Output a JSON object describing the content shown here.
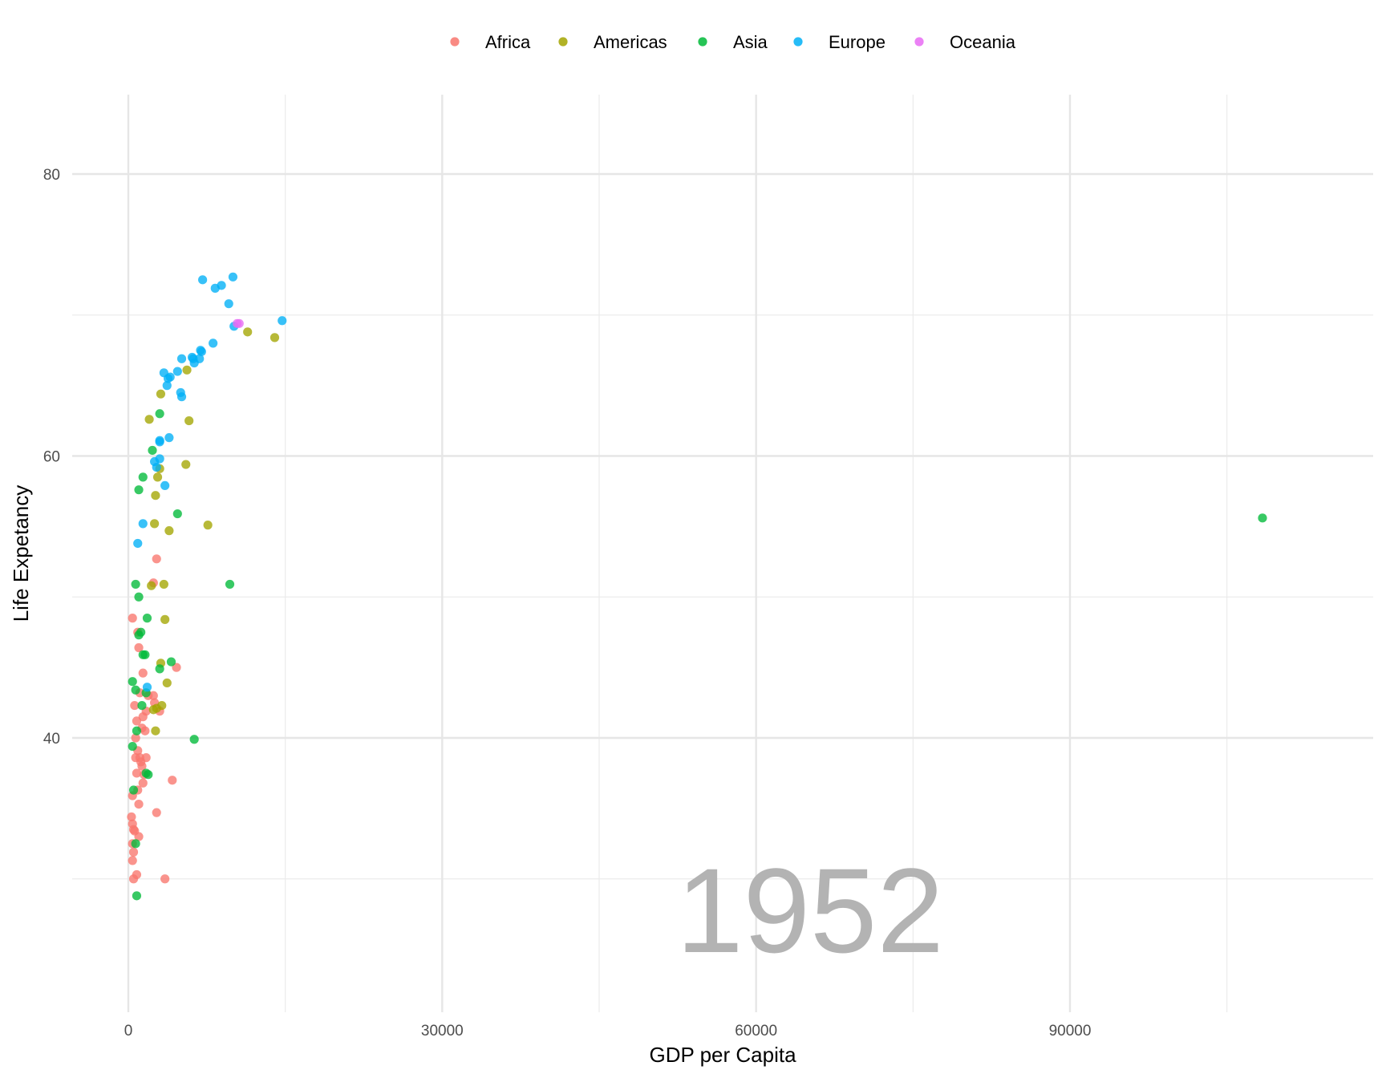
{
  "chart_data": {
    "type": "scatter",
    "xlabel": "GDP per Capita",
    "ylabel": "Life Expetancy",
    "annotation": "1952",
    "xlim": [
      -5000,
      119000
    ],
    "ylim": [
      25,
      84
    ],
    "xticks": [
      0,
      30000,
      60000,
      90000
    ],
    "xtick_labels": [
      "0",
      "30000",
      "60000",
      "90000"
    ],
    "yticks": [
      40,
      60,
      80
    ],
    "ytick_labels": [
      "40",
      "60",
      "80"
    ],
    "grid": true,
    "legend_position": "top",
    "series": [
      {
        "name": "Africa",
        "color": "#F8766D",
        "points": [
          [
            400,
            48.5
          ],
          [
            900,
            47.5
          ],
          [
            1000,
            46.4
          ],
          [
            1400,
            44.6
          ],
          [
            4600,
            45.0
          ],
          [
            2400,
            51.0
          ],
          [
            2700,
            52.7
          ],
          [
            600,
            42.3
          ],
          [
            1100,
            43.2
          ],
          [
            1400,
            41.5
          ],
          [
            1700,
            41.9
          ],
          [
            2400,
            43.0
          ],
          [
            2500,
            42.5
          ],
          [
            3000,
            41.9
          ],
          [
            700,
            40.0
          ],
          [
            1300,
            40.7
          ],
          [
            1600,
            40.5
          ],
          [
            1900,
            43.0
          ],
          [
            800,
            41.2
          ],
          [
            700,
            38.6
          ],
          [
            900,
            39.1
          ],
          [
            1500,
            37.4
          ],
          [
            1700,
            38.6
          ],
          [
            1200,
            38.3
          ],
          [
            1100,
            38.6
          ],
          [
            1300,
            38.0
          ],
          [
            4200,
            37.0
          ],
          [
            800,
            37.5
          ],
          [
            1400,
            36.8
          ],
          [
            900,
            36.3
          ],
          [
            400,
            35.9
          ],
          [
            1000,
            35.3
          ],
          [
            2700,
            34.7
          ],
          [
            300,
            34.4
          ],
          [
            400,
            33.9
          ],
          [
            500,
            33.5
          ],
          [
            600,
            33.4
          ],
          [
            1000,
            33.0
          ],
          [
            400,
            32.5
          ],
          [
            500,
            31.9
          ],
          [
            400,
            31.3
          ],
          [
            800,
            30.3
          ],
          [
            500,
            30.0
          ],
          [
            3500,
            30.0
          ]
        ]
      },
      {
        "name": "Americas",
        "color": "#A3A500",
        "points": [
          [
            11400,
            68.8
          ],
          [
            13990,
            68.4
          ],
          [
            5600,
            66.1
          ],
          [
            3100,
            64.4
          ],
          [
            2000,
            62.6
          ],
          [
            5800,
            62.5
          ],
          [
            5500,
            59.4
          ],
          [
            3000,
            59.1
          ],
          [
            2800,
            58.5
          ],
          [
            2600,
            57.2
          ],
          [
            2500,
            55.2
          ],
          [
            3900,
            54.7
          ],
          [
            7600,
            55.1
          ],
          [
            2200,
            50.8
          ],
          [
            3400,
            50.9
          ],
          [
            3500,
            48.4
          ],
          [
            3100,
            45.3
          ],
          [
            3700,
            43.9
          ],
          [
            3200,
            42.3
          ],
          [
            2700,
            42.1
          ],
          [
            2400,
            42.0
          ],
          [
            2600,
            40.5
          ]
        ]
      },
      {
        "name": "Asia",
        "color": "#00BA38",
        "points": [
          [
            108400,
            55.6
          ],
          [
            3000,
            63.0
          ],
          [
            2300,
            60.4
          ],
          [
            1400,
            58.5
          ],
          [
            1000,
            57.6
          ],
          [
            4700,
            55.9
          ],
          [
            9700,
            50.9
          ],
          [
            700,
            50.9
          ],
          [
            1000,
            50.0
          ],
          [
            1800,
            48.5
          ],
          [
            1200,
            47.5
          ],
          [
            1000,
            47.3
          ],
          [
            1400,
            45.9
          ],
          [
            1600,
            45.9
          ],
          [
            4100,
            45.4
          ],
          [
            3000,
            44.9
          ],
          [
            400,
            44.0
          ],
          [
            700,
            43.4
          ],
          [
            1700,
            43.2
          ],
          [
            1300,
            42.3
          ],
          [
            800,
            40.5
          ],
          [
            6300,
            39.9
          ],
          [
            400,
            39.4
          ],
          [
            1700,
            37.5
          ],
          [
            1900,
            37.4
          ],
          [
            500,
            36.3
          ],
          [
            700,
            32.5
          ],
          [
            800,
            28.8
          ]
        ]
      },
      {
        "name": "Europe",
        "color": "#00B0F6",
        "points": [
          [
            10000,
            72.7
          ],
          [
            7100,
            72.5
          ],
          [
            8900,
            72.1
          ],
          [
            8300,
            71.9
          ],
          [
            9600,
            70.8
          ],
          [
            14700,
            69.6
          ],
          [
            10100,
            69.2
          ],
          [
            8100,
            68.0
          ],
          [
            6900,
            67.5
          ],
          [
            7000,
            67.4
          ],
          [
            6100,
            67.0
          ],
          [
            6200,
            66.9
          ],
          [
            6800,
            66.9
          ],
          [
            5100,
            66.9
          ],
          [
            6300,
            66.6
          ],
          [
            4700,
            66.0
          ],
          [
            3400,
            65.9
          ],
          [
            4000,
            65.6
          ],
          [
            3800,
            65.5
          ],
          [
            3700,
            65.0
          ],
          [
            5000,
            64.5
          ],
          [
            5100,
            64.2
          ],
          [
            3900,
            61.3
          ],
          [
            3000,
            61.1
          ],
          [
            3000,
            61.0
          ],
          [
            2500,
            59.6
          ],
          [
            3000,
            59.8
          ],
          [
            2700,
            59.2
          ],
          [
            3500,
            57.9
          ],
          [
            1400,
            55.2
          ],
          [
            900,
            53.8
          ],
          [
            1800,
            43.6
          ]
        ]
      },
      {
        "name": "Oceania",
        "color": "#E76BF3",
        "points": [
          [
            10400,
            69.4
          ],
          [
            10600,
            69.4
          ]
        ]
      }
    ]
  }
}
